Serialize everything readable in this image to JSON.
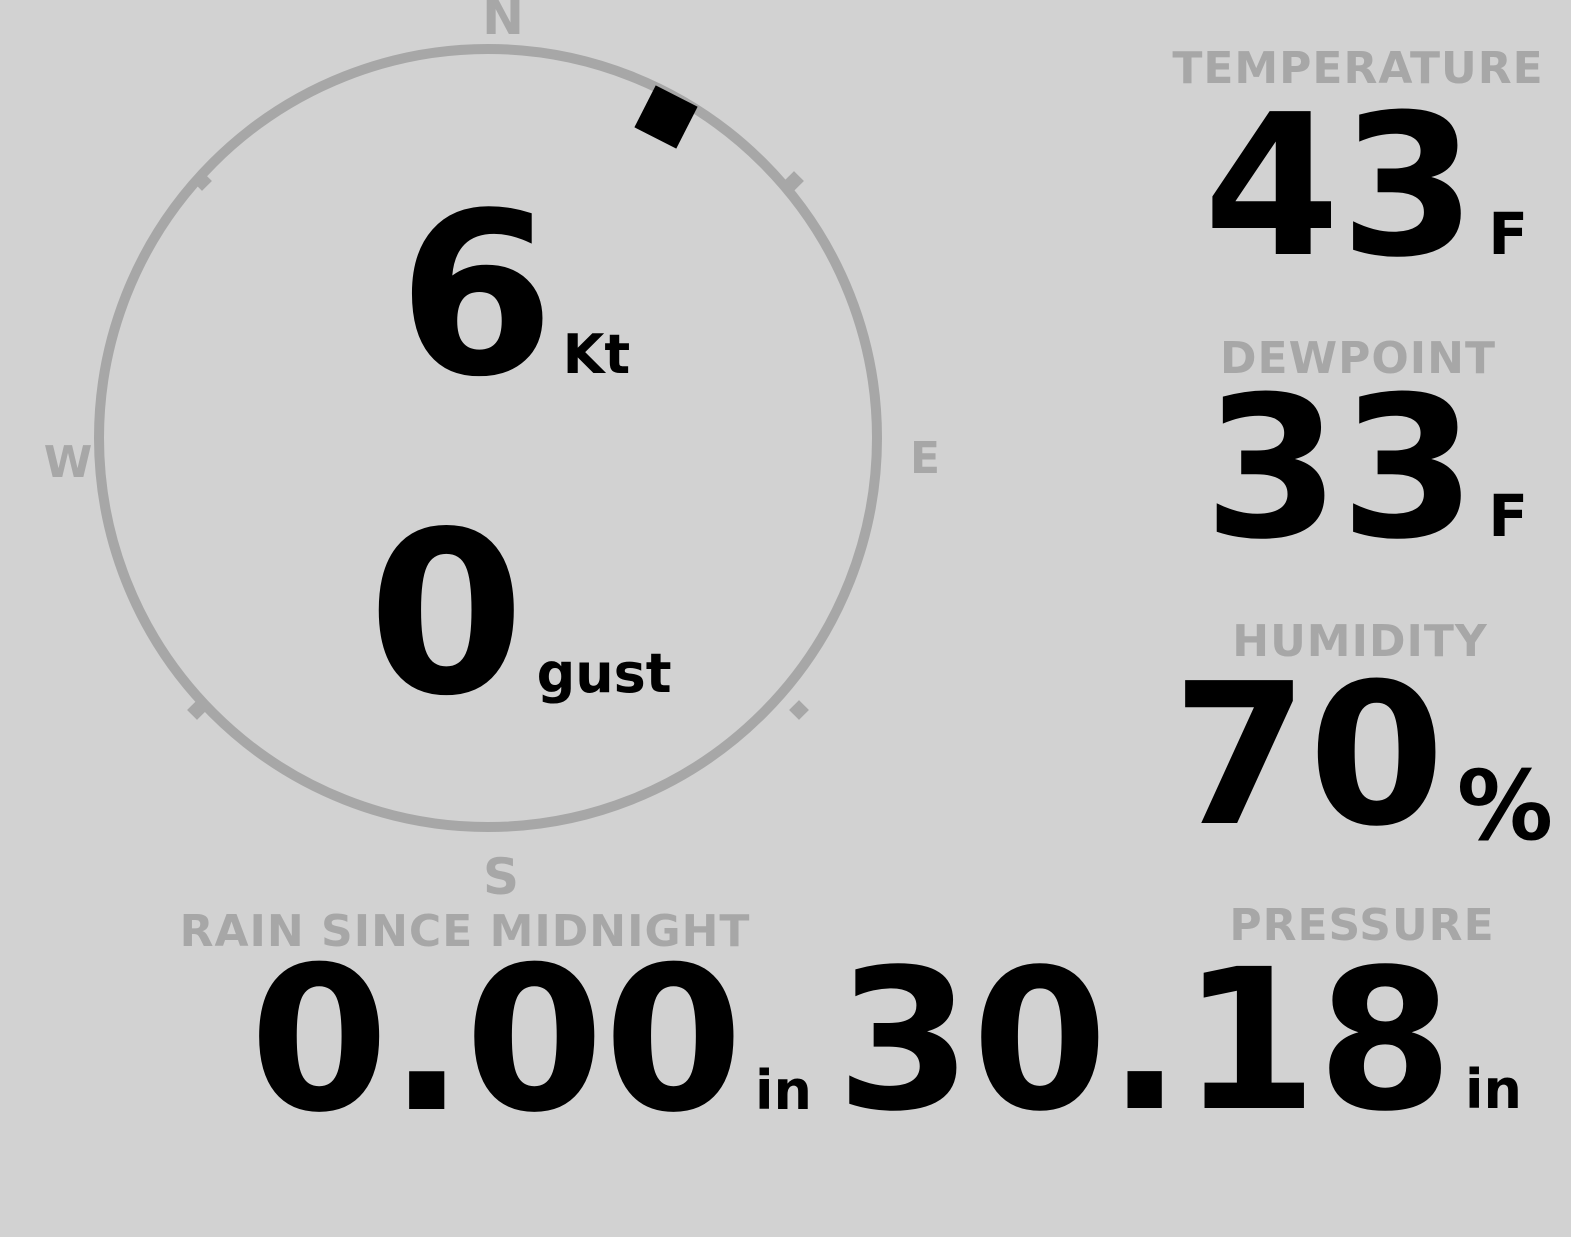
{
  "theme": {
    "background": "#d2d2d2",
    "muted": "#a7a7a7",
    "ink": "#000000"
  },
  "wind_gauge": {
    "cardinals": {
      "n": "N",
      "e": "E",
      "s": "S",
      "w": "W"
    },
    "direction_deg": 27,
    "speed_value": "6",
    "speed_unit": "Kt",
    "gust_value": "0",
    "gust_unit": "gust"
  },
  "metrics": {
    "temperature": {
      "label": "TEMPERATURE",
      "value": "43",
      "unit": "F"
    },
    "dewpoint": {
      "label": "DEWPOINT",
      "value": "33",
      "unit": "F"
    },
    "humidity": {
      "label": "HUMIDITY",
      "value": "70",
      "unit": "%"
    },
    "rain": {
      "label": "RAIN SINCE MIDNIGHT",
      "value": "0.00",
      "unit": "in"
    },
    "pressure": {
      "label": "PRESSURE",
      "value": "30.18",
      "unit": "in"
    }
  }
}
